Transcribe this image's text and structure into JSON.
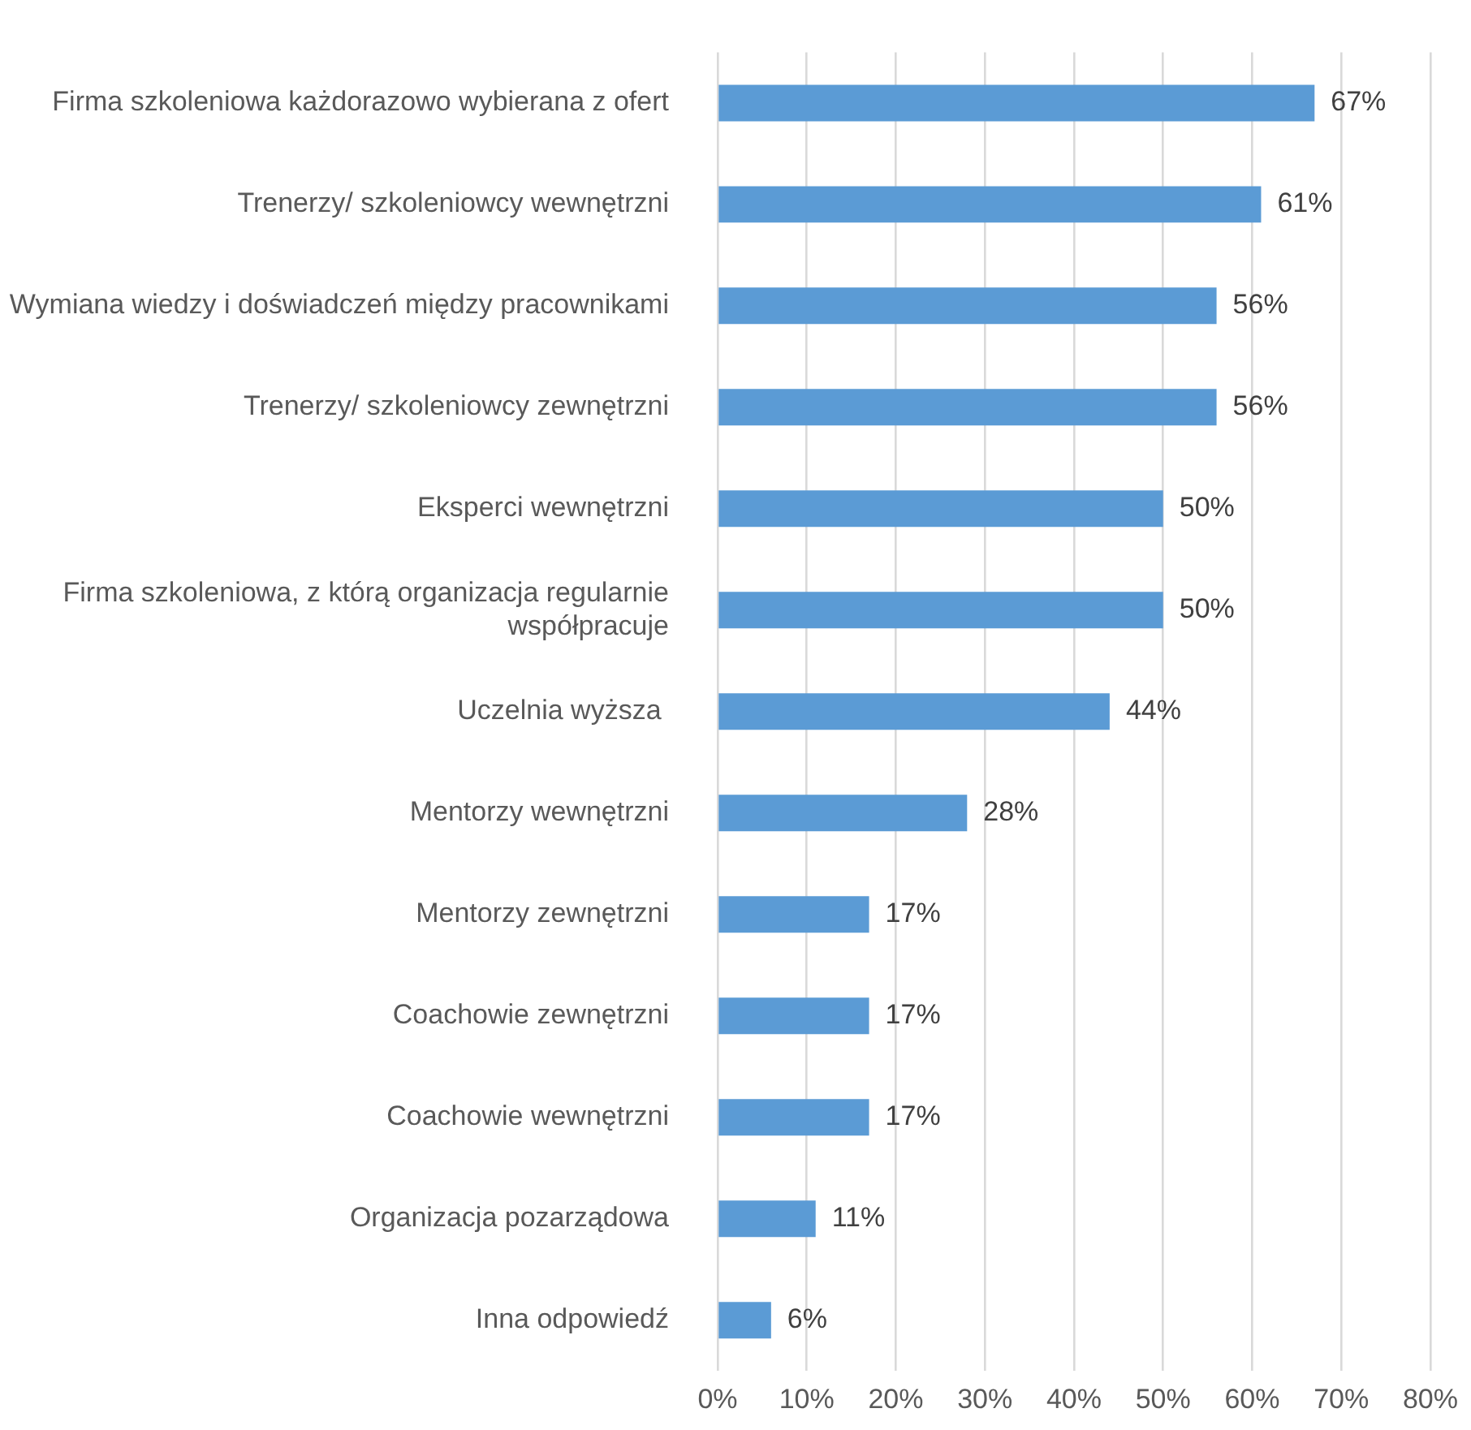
{
  "chart_data": {
    "type": "bar",
    "orientation": "horizontal",
    "categories": [
      "Firma szkoleniowa każdorazowo wybierana z ofert",
      "Trenerzy/ szkoleniowcy wewnętrzni",
      "Wymiana wiedzy i doświadczeń między pracownikami",
      "Trenerzy/ szkoleniowcy zewnętrzni",
      "Eksperci wewnętrzni",
      "Firma szkoleniowa, z którą organizacja regularnie współpracuje",
      "Uczelnia wyższa ",
      "Mentorzy wewnętrzni",
      "Mentorzy zewnętrzni",
      "Coachowie zewnętrzni",
      "Coachowie wewnętrzni",
      "Organizacja pozarządowa",
      "Inna odpowiedź"
    ],
    "values": [
      67,
      61,
      56,
      56,
      50,
      50,
      44,
      28,
      17,
      17,
      17,
      11,
      6
    ],
    "value_labels": [
      "67%",
      "61%",
      "56%",
      "56%",
      "50%",
      "50%",
      "44%",
      "28%",
      "17%",
      "17%",
      "17%",
      "11%",
      "6%"
    ],
    "color": "#5b9bd5",
    "xlim": [
      0,
      80
    ],
    "xticks": [
      {
        "value": 0,
        "label": "0%"
      },
      {
        "value": 10,
        "label": "10%"
      },
      {
        "value": 20,
        "label": "20%"
      },
      {
        "value": 30,
        "label": "30%"
      },
      {
        "value": 40,
        "label": "40%"
      },
      {
        "value": 50,
        "label": "50%"
      },
      {
        "value": 60,
        "label": "60%"
      },
      {
        "value": 70,
        "label": "70%"
      },
      {
        "value": 80,
        "label": "80%"
      }
    ],
    "grid": "x"
  }
}
